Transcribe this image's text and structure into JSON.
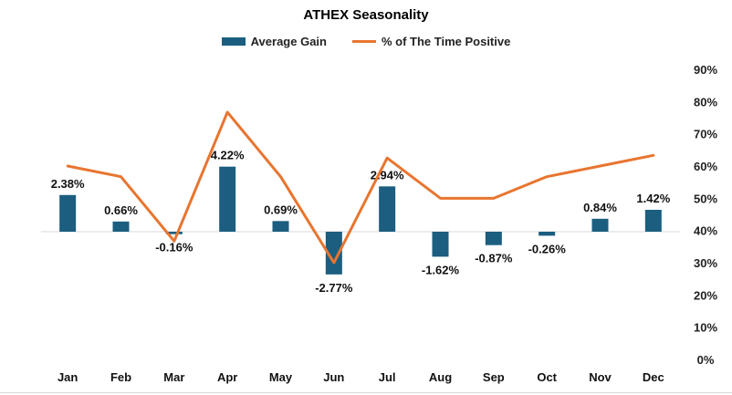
{
  "chart_data": {
    "type": "bar+line",
    "title": "ATHEX Seasonality",
    "categories": [
      "Jan",
      "Feb",
      "Mar",
      "Apr",
      "May",
      "Jun",
      "Jul",
      "Aug",
      "Sep",
      "Oct",
      "Nov",
      "Dec"
    ],
    "series": [
      {
        "name": "Average Gain",
        "type": "bar",
        "axis": "primary",
        "color": "#1b5e80",
        "values": [
          2.38,
          0.66,
          -0.16,
          4.22,
          0.69,
          -2.77,
          2.94,
          -1.62,
          -0.87,
          -0.26,
          0.84,
          1.42
        ],
        "labels": [
          "2.38%",
          "0.66%",
          "-0.16%",
          "4.22%",
          "0.69%",
          "-2.77%",
          "2.94%",
          "-1.62%",
          "-0.87%",
          "-0.26%",
          "0.84%",
          "1.42%"
        ]
      },
      {
        "name": "% of The Time Positive",
        "type": "line",
        "axis": "secondary",
        "color": "#e8752f",
        "values": [
          60,
          56.7,
          36.7,
          76.7,
          56.7,
          30,
          62.5,
          50,
          50,
          56.7,
          60,
          63.3
        ]
      }
    ],
    "primary_axis": {
      "range": [
        -4,
        5
      ],
      "zero_line": true
    },
    "secondary_axis": {
      "range": [
        0,
        90
      ],
      "ticks": [
        "90%",
        "80%",
        "70%",
        "60%",
        "50%",
        "40%",
        "30%",
        "20%",
        "10%",
        "0%"
      ],
      "position": "right"
    },
    "legend_position": "top"
  }
}
